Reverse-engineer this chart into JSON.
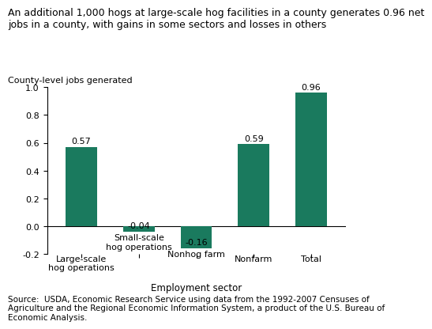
{
  "title": "An additional 1,000 hogs at large-scale hog facilities in a county generates 0.96 net\njobs in a county, with gains in some sectors and losses in others",
  "ylabel": "County-level jobs generated",
  "xlabel": "Employment sector",
  "categories_pos": [
    "Large-scale\nhog operations",
    "Nonfarm",
    "Total"
  ],
  "categories_neg": [
    "Small-scale\nhog operations",
    "Nonhog farm"
  ],
  "categories_all": [
    "Large-scale\nhog operations",
    "Small-scale\nhog operations",
    "Nonhog farm",
    "Nonfarm",
    "Total"
  ],
  "values": [
    0.57,
    -0.04,
    -0.16,
    0.59,
    0.96
  ],
  "bar_color": "#1a7a5e",
  "ylim": [
    -0.2,
    1.0
  ],
  "yticks": [
    -0.2,
    0.0,
    0.2,
    0.4,
    0.6,
    0.8,
    1.0
  ],
  "source_text": "Source:  USDA, Economic Research Service using data from the 1992-2007 Censuses of\nAgriculture and the Regional Economic Information System, a product of the U.S. Bureau of\nEconomic Analysis.",
  "title_fontsize": 9.0,
  "ylabel_fontsize": 8.0,
  "xlabel_fontsize": 8.5,
  "tick_fontsize": 8.0,
  "source_fontsize": 7.5,
  "bar_width": 0.55
}
